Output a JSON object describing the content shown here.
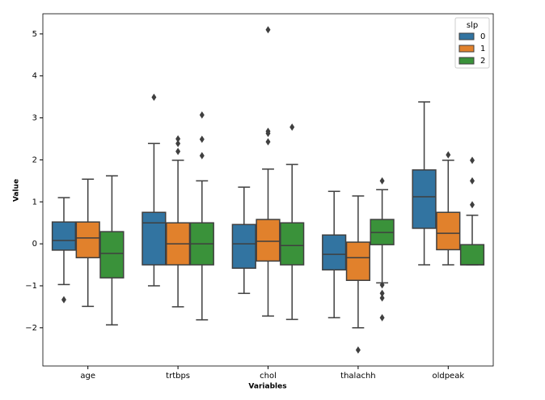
{
  "chart_data": {
    "type": "box",
    "x_label": "Variables",
    "y_label": "Value",
    "categories": [
      "age",
      "trtbps",
      "chol",
      "thalachh",
      "oldpeak"
    ],
    "legend_title": "slp",
    "legend_position": "upper right",
    "ylim": [
      -2.91,
      5.48
    ],
    "yticks": [
      {
        "value": -2,
        "label": "−2"
      },
      {
        "value": -1,
        "label": "−1"
      },
      0,
      1,
      2,
      3,
      4,
      5
    ],
    "series": [
      {
        "name": "0",
        "color": "#3274a1",
        "boxes": [
          {
            "whislo": -0.97,
            "q1": -0.15,
            "med": 0.08,
            "q3": 0.52,
            "whishi": 1.1,
            "fliers": [
              -1.33
            ]
          },
          {
            "whislo": -1.0,
            "q1": -0.5,
            "med": 0.5,
            "q3": 0.75,
            "whishi": 2.39,
            "fliers": [
              3.49
            ]
          },
          {
            "whislo": -1.18,
            "q1": -0.58,
            "med": 0,
            "q3": 0.46,
            "whishi": 1.35,
            "fliers": []
          },
          {
            "whislo": -1.76,
            "q1": -0.62,
            "med": -0.25,
            "q3": 0.21,
            "whishi": 1.25,
            "fliers": []
          },
          {
            "whislo": -0.5,
            "q1": 0.37,
            "med": 1.12,
            "q3": 1.76,
            "whishi": 3.38,
            "fliers": []
          }
        ]
      },
      {
        "name": "1",
        "color": "#e1812c",
        "boxes": [
          {
            "whislo": -1.49,
            "q1": -0.33,
            "med": 0.14,
            "q3": 0.52,
            "whishi": 1.54,
            "fliers": []
          },
          {
            "whislo": -1.5,
            "q1": -0.5,
            "med": 0,
            "q3": 0.5,
            "whishi": 1.99,
            "fliers": [
              2.5,
              2.39,
              2.2
            ]
          },
          {
            "whislo": -1.72,
            "q1": -0.41,
            "med": 0.06,
            "q3": 0.58,
            "whishi": 1.78,
            "fliers": [
              5.1,
              2.68,
              2.63,
              2.43
            ]
          },
          {
            "whislo": -2.0,
            "q1": -0.87,
            "med": -0.33,
            "q3": 0.04,
            "whishi": 1.14,
            "fliers": [
              -2.53
            ]
          },
          {
            "whislo": -0.5,
            "q1": -0.14,
            "med": 0.25,
            "q3": 0.75,
            "whishi": 1.99,
            "fliers": [
              2.12
            ]
          }
        ]
      },
      {
        "name": "2",
        "color": "#3a923a",
        "boxes": [
          {
            "whislo": -1.93,
            "q1": -0.81,
            "med": -0.23,
            "q3": 0.29,
            "whishi": 1.62,
            "fliers": []
          },
          {
            "whislo": -1.81,
            "q1": -0.5,
            "med": 0,
            "q3": 0.5,
            "whishi": 1.5,
            "fliers": [
              3.07,
              2.49,
              2.1
            ]
          },
          {
            "whislo": -1.8,
            "q1": -0.5,
            "med": -0.04,
            "q3": 0.5,
            "whishi": 1.89,
            "fliers": [
              2.78
            ]
          },
          {
            "whislo": -0.93,
            "q1": -0.02,
            "med": 0.27,
            "q3": 0.58,
            "whishi": 1.29,
            "fliers": [
              1.5,
              -0.98,
              -1.18,
              -1.29,
              -1.76
            ]
          },
          {
            "whislo": -0.5,
            "q1": -0.5,
            "med": -0.5,
            "q3": -0.02,
            "whishi": 0.68,
            "fliers": [
              1.99,
              1.5,
              0.93
            ]
          }
        ]
      }
    ]
  }
}
